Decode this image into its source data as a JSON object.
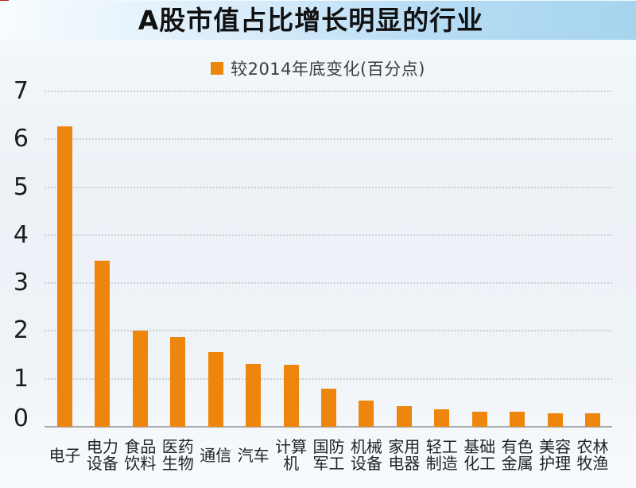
{
  "page": {
    "title": "A股市值占比增长明显的行业"
  },
  "legend": {
    "label": "较2014年底变化(百分点)",
    "swatch_color": "#ee860d"
  },
  "colors": {
    "bar": "#ee860d",
    "title_bar_blue": "#a6d4ef",
    "corner_mark_red": "#c5161d",
    "axis_gray": "#a8acae",
    "gridline_gray": "#c9ced2"
  },
  "chart_data": {
    "type": "bar",
    "title": "A股市值占比增长明显的行业",
    "legend": "较2014年底变化(百分点)",
    "categories": [
      "电子",
      "电力设备",
      "食品饮料",
      "医药生物",
      "通信",
      "汽车",
      "计算机",
      "国防军工",
      "机械设备",
      "家用电器",
      "轻工制造",
      "基础化工",
      "有色金属",
      "美容护理",
      "农林牧渔"
    ],
    "category_lines": [
      [
        "电子"
      ],
      [
        "电力",
        "设备"
      ],
      [
        "食品",
        "饮料"
      ],
      [
        "医药",
        "生物"
      ],
      [
        "通信"
      ],
      [
        "汽车"
      ],
      [
        "计算",
        "机"
      ],
      [
        "国防",
        "军工"
      ],
      [
        "机械",
        "设备"
      ],
      [
        "家用",
        "电器"
      ],
      [
        "轻工",
        "制造"
      ],
      [
        "基础",
        "化工"
      ],
      [
        "有色",
        "金属"
      ],
      [
        "美容",
        "护理"
      ],
      [
        "农林",
        "牧渔"
      ]
    ],
    "values": [
      6.27,
      3.47,
      2.0,
      1.87,
      1.56,
      1.31,
      1.3,
      0.8,
      0.55,
      0.43,
      0.36,
      0.32,
      0.31,
      0.29,
      0.28
    ],
    "xlabel": "",
    "ylabel": "",
    "ylim": [
      0,
      7
    ],
    "yticks": [
      0,
      1,
      2,
      3,
      4,
      5,
      6,
      7
    ],
    "grid": "horizontal-dotted",
    "legend_position": "top-center",
    "bar_color": "#ee860d"
  }
}
